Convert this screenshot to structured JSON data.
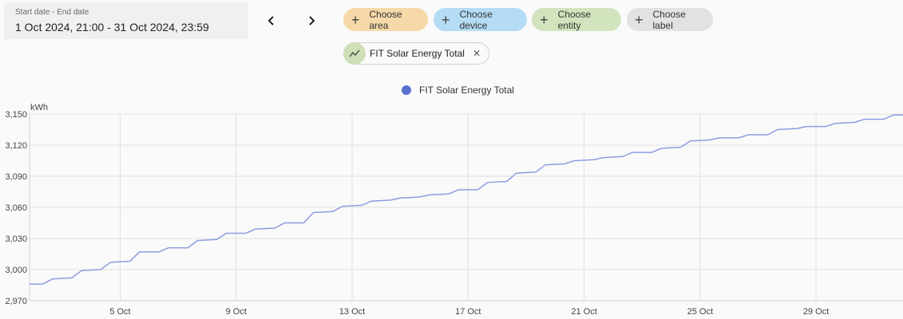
{
  "date_range": {
    "label": "Start date - End date",
    "value": "1 Oct 2024, 21:00 - 31 Oct 2024, 23:59"
  },
  "nav": {
    "prev_icon": "chevron-left-icon",
    "next_icon": "chevron-right-icon"
  },
  "chips": {
    "area": {
      "label": "Choose area",
      "color": "#f6d9a8"
    },
    "device": {
      "label": "Choose device",
      "color": "#b4dcf5"
    },
    "entity": {
      "label": "Choose entity",
      "color": "#d2e4bd"
    },
    "label": {
      "label": "Choose label",
      "color": "#e2e2e2"
    }
  },
  "selected_entity": {
    "name": "FIT Solar Energy Total",
    "icon": "chart-line-icon",
    "remove_icon": "close-icon"
  },
  "chart_data": {
    "type": "line",
    "title": "",
    "legend": [
      {
        "name": "FIT Solar Energy Total",
        "color": "#5a6fd0"
      }
    ],
    "ylabel": "kWh",
    "ylim": [
      2970,
      3150
    ],
    "yticks": [
      "2,970",
      "3,000",
      "3,030",
      "3,060",
      "3,090",
      "3,120",
      "3,150"
    ],
    "xticks": [
      "5 Oct",
      "9 Oct",
      "13 Oct",
      "17 Oct",
      "21 Oct",
      "25 Oct",
      "29 Oct"
    ],
    "xlim": [
      "2024-10-01T21:00",
      "2024-10-31T23:59"
    ],
    "grid": true,
    "series": [
      {
        "name": "FIT Solar Energy Total",
        "color": "#8e9ce0",
        "points": [
          [
            "2024-10-01T21:00",
            2986
          ],
          [
            "2024-10-02T08:00",
            2986
          ],
          [
            "2024-10-02T16:00",
            2991
          ],
          [
            "2024-10-03T08:00",
            2992
          ],
          [
            "2024-10-03T16:00",
            2999
          ],
          [
            "2024-10-04T08:00",
            3000
          ],
          [
            "2024-10-04T16:00",
            3007
          ],
          [
            "2024-10-05T08:00",
            3008
          ],
          [
            "2024-10-05T16:00",
            3017
          ],
          [
            "2024-10-06T08:00",
            3017
          ],
          [
            "2024-10-06T16:00",
            3021
          ],
          [
            "2024-10-07T08:00",
            3021
          ],
          [
            "2024-10-07T16:00",
            3028
          ],
          [
            "2024-10-08T08:00",
            3029
          ],
          [
            "2024-10-08T16:00",
            3035
          ],
          [
            "2024-10-09T08:00",
            3035
          ],
          [
            "2024-10-09T16:00",
            3039
          ],
          [
            "2024-10-10T08:00",
            3040
          ],
          [
            "2024-10-10T16:00",
            3045
          ],
          [
            "2024-10-11T08:00",
            3045
          ],
          [
            "2024-10-11T16:00",
            3055
          ],
          [
            "2024-10-12T08:00",
            3056
          ],
          [
            "2024-10-12T16:00",
            3061
          ],
          [
            "2024-10-13T08:00",
            3062
          ],
          [
            "2024-10-13T16:00",
            3066
          ],
          [
            "2024-10-14T08:00",
            3067
          ],
          [
            "2024-10-14T16:00",
            3069
          ],
          [
            "2024-10-15T08:00",
            3070
          ],
          [
            "2024-10-15T16:00",
            3072
          ],
          [
            "2024-10-16T08:00",
            3073
          ],
          [
            "2024-10-16T16:00",
            3077
          ],
          [
            "2024-10-17T08:00",
            3077
          ],
          [
            "2024-10-17T16:00",
            3084
          ],
          [
            "2024-10-18T08:00",
            3085
          ],
          [
            "2024-10-18T16:00",
            3093
          ],
          [
            "2024-10-19T08:00",
            3094
          ],
          [
            "2024-10-19T16:00",
            3101
          ],
          [
            "2024-10-20T08:00",
            3102
          ],
          [
            "2024-10-20T16:00",
            3105
          ],
          [
            "2024-10-21T08:00",
            3106
          ],
          [
            "2024-10-21T16:00",
            3108
          ],
          [
            "2024-10-22T08:00",
            3109
          ],
          [
            "2024-10-22T16:00",
            3113
          ],
          [
            "2024-10-23T08:00",
            3113
          ],
          [
            "2024-10-23T16:00",
            3117
          ],
          [
            "2024-10-24T08:00",
            3118
          ],
          [
            "2024-10-24T16:00",
            3124
          ],
          [
            "2024-10-25T08:00",
            3125
          ],
          [
            "2024-10-25T16:00",
            3127
          ],
          [
            "2024-10-26T08:00",
            3127
          ],
          [
            "2024-10-26T16:00",
            3130
          ],
          [
            "2024-10-27T08:00",
            3130
          ],
          [
            "2024-10-27T16:00",
            3135
          ],
          [
            "2024-10-28T08:00",
            3136
          ],
          [
            "2024-10-28T16:00",
            3138
          ],
          [
            "2024-10-29T08:00",
            3138
          ],
          [
            "2024-10-29T16:00",
            3141
          ],
          [
            "2024-10-30T08:00",
            3142
          ],
          [
            "2024-10-30T16:00",
            3145
          ],
          [
            "2024-10-31T08:00",
            3145
          ],
          [
            "2024-10-31T16:00",
            3149
          ],
          [
            "2024-10-31T23:59",
            3149
          ]
        ]
      }
    ]
  }
}
